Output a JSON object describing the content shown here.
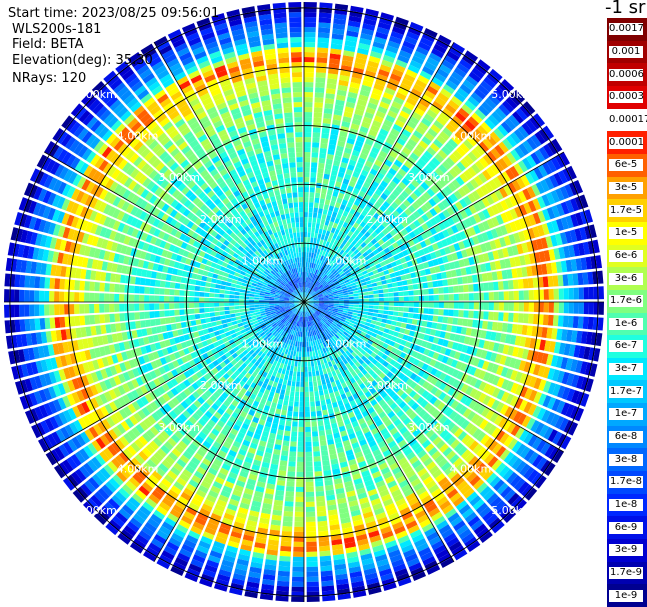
{
  "info": {
    "start_time": "Start time: 2023/08/25 09:56:01",
    "device": "WLS200s-181",
    "field": "Field: BETA",
    "elevation": "Elevation(deg): 35.30",
    "nrays": "NRays: 120"
  },
  "units": "-1 sr",
  "chart_data": {
    "type": "heatmap",
    "projection": "polar",
    "title": "",
    "n_rays": 120,
    "range_rings_km": [
      1,
      2,
      3,
      4,
      5
    ],
    "ring_labels": [
      "1.00km",
      "2.00km",
      "3.00km",
      "4.00km",
      "5.00km"
    ],
    "max_range_km": 5.1,
    "radial_lines_deg": [
      0,
      30,
      60,
      90,
      120,
      150,
      180,
      210,
      240,
      270,
      300,
      330
    ],
    "radial_profile": [
      {
        "range_km": 0.0,
        "beta": 1e-06
      },
      {
        "range_km": 0.3,
        "beta": 3e-08
      },
      {
        "range_km": 1.0,
        "beta": 4e-07
      },
      {
        "range_km": 2.0,
        "beta": 6e-07
      },
      {
        "range_km": 3.0,
        "beta": 1e-06
      },
      {
        "range_km": 3.7,
        "beta": 3e-06
      },
      {
        "range_km": 4.1,
        "beta": 3e-05
      },
      {
        "range_km": 4.25,
        "beta": 3e-05
      },
      {
        "range_km": 4.4,
        "beta": 3e-07
      },
      {
        "range_km": 4.7,
        "beta": 3e-08
      },
      {
        "range_km": 5.0,
        "beta": 3e-09
      }
    ],
    "colorbar": {
      "scale": "log",
      "min": 1e-09,
      "max": 0.0017,
      "ticks": [
        "0.0017",
        "0.001",
        "0.0006",
        "0.0003",
        "0.00017",
        "0.0001",
        "6e-5",
        "3e-5",
        "1.7e-5",
        "1e-5",
        "6e-6",
        "3e-6",
        "1.7e-6",
        "1e-6",
        "6e-7",
        "3e-7",
        "1.7e-7",
        "1e-7",
        "6e-8",
        "3e-8",
        "1.7e-8",
        "1e-8",
        "6e-9",
        "3e-9",
        "1.7e-9",
        "1e-9"
      ],
      "colors": [
        "#800000",
        "#a00000",
        "#c00000",
        "#e00000",
        "#ffffff",
        "#ff2000",
        "#ff6000",
        "#ffa000",
        "#ffd000",
        "#ffff00",
        "#e0ff20",
        "#b0ff50",
        "#80ff80",
        "#50ffb0",
        "#20ffe0",
        "#00e8ff",
        "#00c8ff",
        "#00a8ff",
        "#0088ff",
        "#0068ff",
        "#0048ff",
        "#0028ff",
        "#0010e8",
        "#0000d0",
        "#0000b0",
        "#000090"
      ]
    }
  }
}
